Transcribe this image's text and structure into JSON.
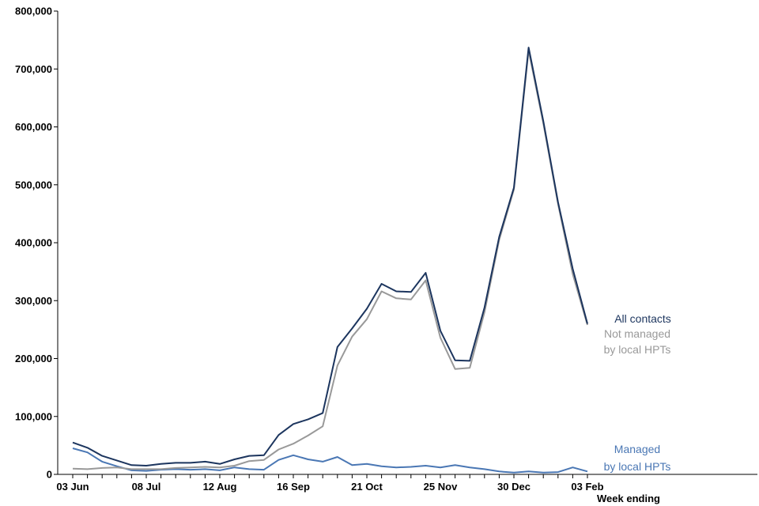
{
  "chart_data": {
    "type": "line",
    "xlabel": "Week ending",
    "ylabel": "",
    "ylim": [
      0,
      800000
    ],
    "yticks": [
      "0",
      "100,000",
      "200,000",
      "300,000",
      "400,000",
      "500,000",
      "600,000",
      "700,000",
      "800,000"
    ],
    "xtick_labels": [
      "03 Jun",
      "08 Jul",
      "12 Aug",
      "16 Sep",
      "21 Oct",
      "25 Nov",
      "30 Dec",
      "03 Feb"
    ],
    "grid": false,
    "weeks": [
      "03 Jun",
      "10 Jun",
      "17 Jun",
      "24 Jun",
      "01 Jul",
      "08 Jul",
      "15 Jul",
      "22 Jul",
      "29 Jul",
      "05 Aug",
      "12 Aug",
      "19 Aug",
      "26 Aug",
      "02 Sep",
      "09 Sep",
      "16 Sep",
      "23 Sep",
      "30 Sep",
      "07 Oct",
      "14 Oct",
      "21 Oct",
      "28 Oct",
      "04 Nov",
      "11 Nov",
      "18 Nov",
      "25 Nov",
      "02 Dec",
      "09 Dec",
      "16 Dec",
      "23 Dec",
      "30 Dec",
      "06 Jan",
      "13 Jan",
      "20 Jan",
      "27 Jan",
      "03 Feb"
    ],
    "series": [
      {
        "name": "All contacts",
        "color": "#1c355e",
        "values": [
          55000,
          46000,
          32000,
          24000,
          16000,
          15000,
          18000,
          20000,
          20000,
          22000,
          18000,
          26000,
          32000,
          33000,
          68000,
          87000,
          95000,
          106000,
          220000,
          252000,
          286000,
          329000,
          316000,
          315000,
          348000,
          248000,
          197000,
          196000,
          288000,
          410000,
          495000,
          737000,
          610000,
          470000,
          355000,
          260000
        ]
      },
      {
        "name": "Not managed by local HPTs",
        "color": "#999999",
        "values": [
          10000,
          9000,
          11000,
          12000,
          9000,
          9000,
          9000,
          11000,
          12000,
          13000,
          12000,
          15000,
          23000,
          25000,
          43000,
          53000,
          67000,
          83000,
          188000,
          238000,
          268000,
          316000,
          304000,
          302000,
          335000,
          236000,
          182000,
          184000,
          280000,
          405000,
          492000,
          732000,
          606000,
          467000,
          346000,
          258000
        ]
      },
      {
        "name": "Managed by local HPTs",
        "color": "#4a77b4",
        "values": [
          45000,
          38000,
          22000,
          14000,
          7000,
          6000,
          8000,
          9000,
          8000,
          9000,
          7000,
          12000,
          9000,
          8000,
          25000,
          33000,
          26000,
          22000,
          30000,
          16000,
          18000,
          14000,
          12000,
          13000,
          15000,
          12000,
          16000,
          12000,
          9000,
          5000,
          3000,
          5000,
          3000,
          4000,
          12000,
          5000
        ]
      }
    ],
    "series_labels": {
      "all_contacts": "All contacts",
      "not_managed_line1": "Not managed",
      "not_managed_line2": "by local HPTs",
      "managed_line1": "Managed",
      "managed_line2": "by local HPTs"
    }
  }
}
